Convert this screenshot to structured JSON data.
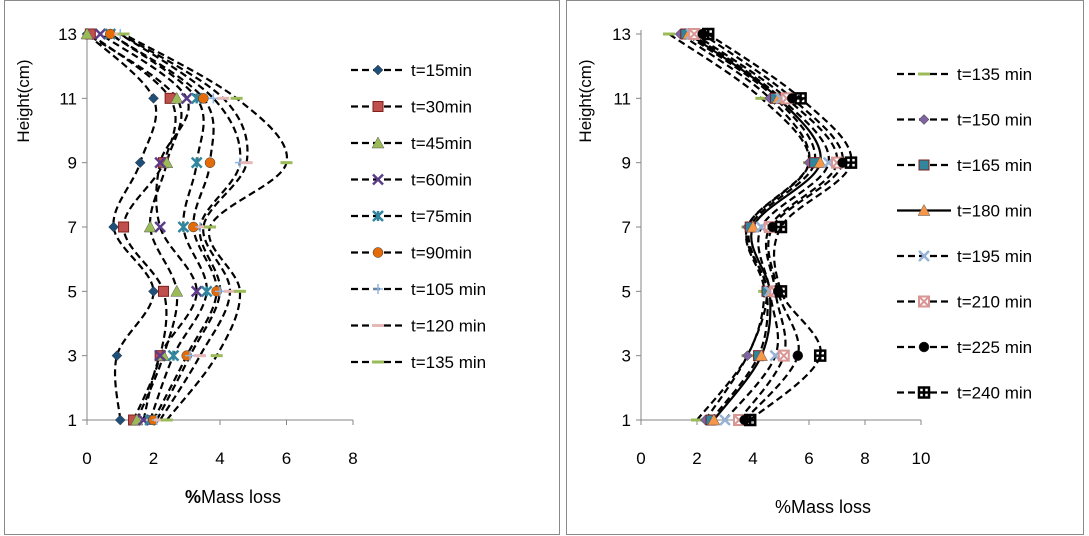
{
  "chart_data": [
    {
      "type": "line",
      "title": "",
      "xlabel_bold": "%",
      "xlabel_rest": "Mass loss",
      "ylabel": "Height(cm)",
      "xlim": [
        0,
        8
      ],
      "ylim": [
        1,
        13
      ],
      "x_ticks": [
        "0",
        "2",
        "4",
        "6",
        "8"
      ],
      "y_ticks": [
        "1",
        "3",
        "5",
        "7",
        "9",
        "11",
        "13"
      ],
      "y": [
        1,
        3,
        5,
        7,
        9,
        11,
        13
      ],
      "legend_position": "right",
      "series": [
        {
          "name": "t=15min",
          "marker": "diamond",
          "color": "#1f4e79",
          "x": [
            1.0,
            0.9,
            2.0,
            0.8,
            1.6,
            2.0,
            0.0
          ]
        },
        {
          "name": "t=30min",
          "marker": "square",
          "color": "#c0504d",
          "x": [
            1.4,
            2.2,
            2.3,
            1.1,
            2.3,
            2.5,
            0.1
          ]
        },
        {
          "name": "t=45min",
          "marker": "triangle",
          "color": "#9bbb59",
          "x": [
            1.5,
            2.3,
            2.7,
            1.9,
            2.4,
            2.7,
            0.0
          ]
        },
        {
          "name": "t=60min",
          "marker": "x",
          "color": "#5b3c88",
          "x": [
            1.7,
            2.2,
            3.3,
            2.2,
            2.2,
            3.0,
            0.4
          ]
        },
        {
          "name": "t=75min",
          "marker": "star",
          "color": "#31859c",
          "x": [
            1.9,
            2.6,
            3.6,
            2.9,
            3.3,
            3.3,
            0.7
          ]
        },
        {
          "name": "t=90min",
          "marker": "circle",
          "color": "#e36c09",
          "x": [
            2.0,
            3.0,
            3.9,
            3.2,
            3.7,
            3.5,
            0.7
          ]
        },
        {
          "name": "t=105 min",
          "marker": "plus",
          "color": "#8eb4e3",
          "x": [
            2.1,
            3.1,
            4.0,
            3.4,
            4.6,
            3.8,
            1.0
          ]
        },
        {
          "name": "t=120 min",
          "marker": "dash",
          "color": "#e6b9b8",
          "x": [
            2.2,
            3.4,
            4.3,
            3.5,
            4.8,
            4.1,
            1.0
          ]
        },
        {
          "name": "t=135 min",
          "marker": "dash",
          "color": "#9bbb59",
          "x": [
            2.4,
            3.9,
            4.6,
            3.7,
            6.0,
            4.5,
            1.1
          ]
        }
      ]
    },
    {
      "type": "line",
      "title": "",
      "xlabel": "%Mass loss",
      "ylabel": "Height(cm)",
      "xlim": [
        0,
        10
      ],
      "ylim": [
        1,
        13
      ],
      "x_ticks": [
        "0",
        "2",
        "4",
        "6",
        "8",
        "10"
      ],
      "y_ticks": [
        "1",
        "3",
        "5",
        "7",
        "9",
        "11",
        "13"
      ],
      "y": [
        1,
        3,
        5,
        7,
        9,
        11,
        13
      ],
      "legend_position": "right",
      "series": [
        {
          "name": "t=135 min",
          "marker": "dash",
          "color": "#9bbb59",
          "x": [
            2.0,
            3.8,
            4.4,
            3.8,
            6.0,
            4.3,
            1.0
          ],
          "solid": false
        },
        {
          "name": "t=150 min",
          "marker": "diamond",
          "color": "#8064a2",
          "x": [
            2.3,
            3.8,
            4.5,
            3.8,
            6.0,
            4.6,
            1.4
          ],
          "solid": false
        },
        {
          "name": "t=165 min",
          "marker": "square",
          "color": "#31859c",
          "x": [
            2.5,
            4.2,
            4.5,
            3.9,
            6.2,
            4.8,
            1.6
          ],
          "solid": false
        },
        {
          "name": "t=180 min",
          "marker": "triangle",
          "color": "#f79646",
          "x": [
            2.6,
            4.3,
            4.6,
            4.0,
            6.4,
            4.9,
            1.7
          ],
          "solid": true
        },
        {
          "name": "t=195 min",
          "marker": "x",
          "color": "#95b3d7",
          "x": [
            3.0,
            4.8,
            4.6,
            4.3,
            6.7,
            5.0,
            1.8
          ],
          "solid": false
        },
        {
          "name": "t=210 min",
          "marker": "xbox",
          "color": "#d99694",
          "x": [
            3.5,
            5.1,
            4.8,
            4.6,
            7.0,
            5.2,
            1.9
          ],
          "solid": false
        },
        {
          "name": "t=225 min",
          "marker": "circle",
          "color": "#000000",
          "x": [
            3.7,
            5.6,
            4.9,
            4.7,
            7.2,
            5.4,
            2.2
          ],
          "solid": false
        },
        {
          "name": "t=240 min",
          "marker": "plusbox",
          "color": "#000000",
          "x": [
            3.9,
            6.4,
            5.0,
            5.0,
            7.5,
            5.7,
            2.4
          ],
          "solid": false
        }
      ]
    }
  ]
}
